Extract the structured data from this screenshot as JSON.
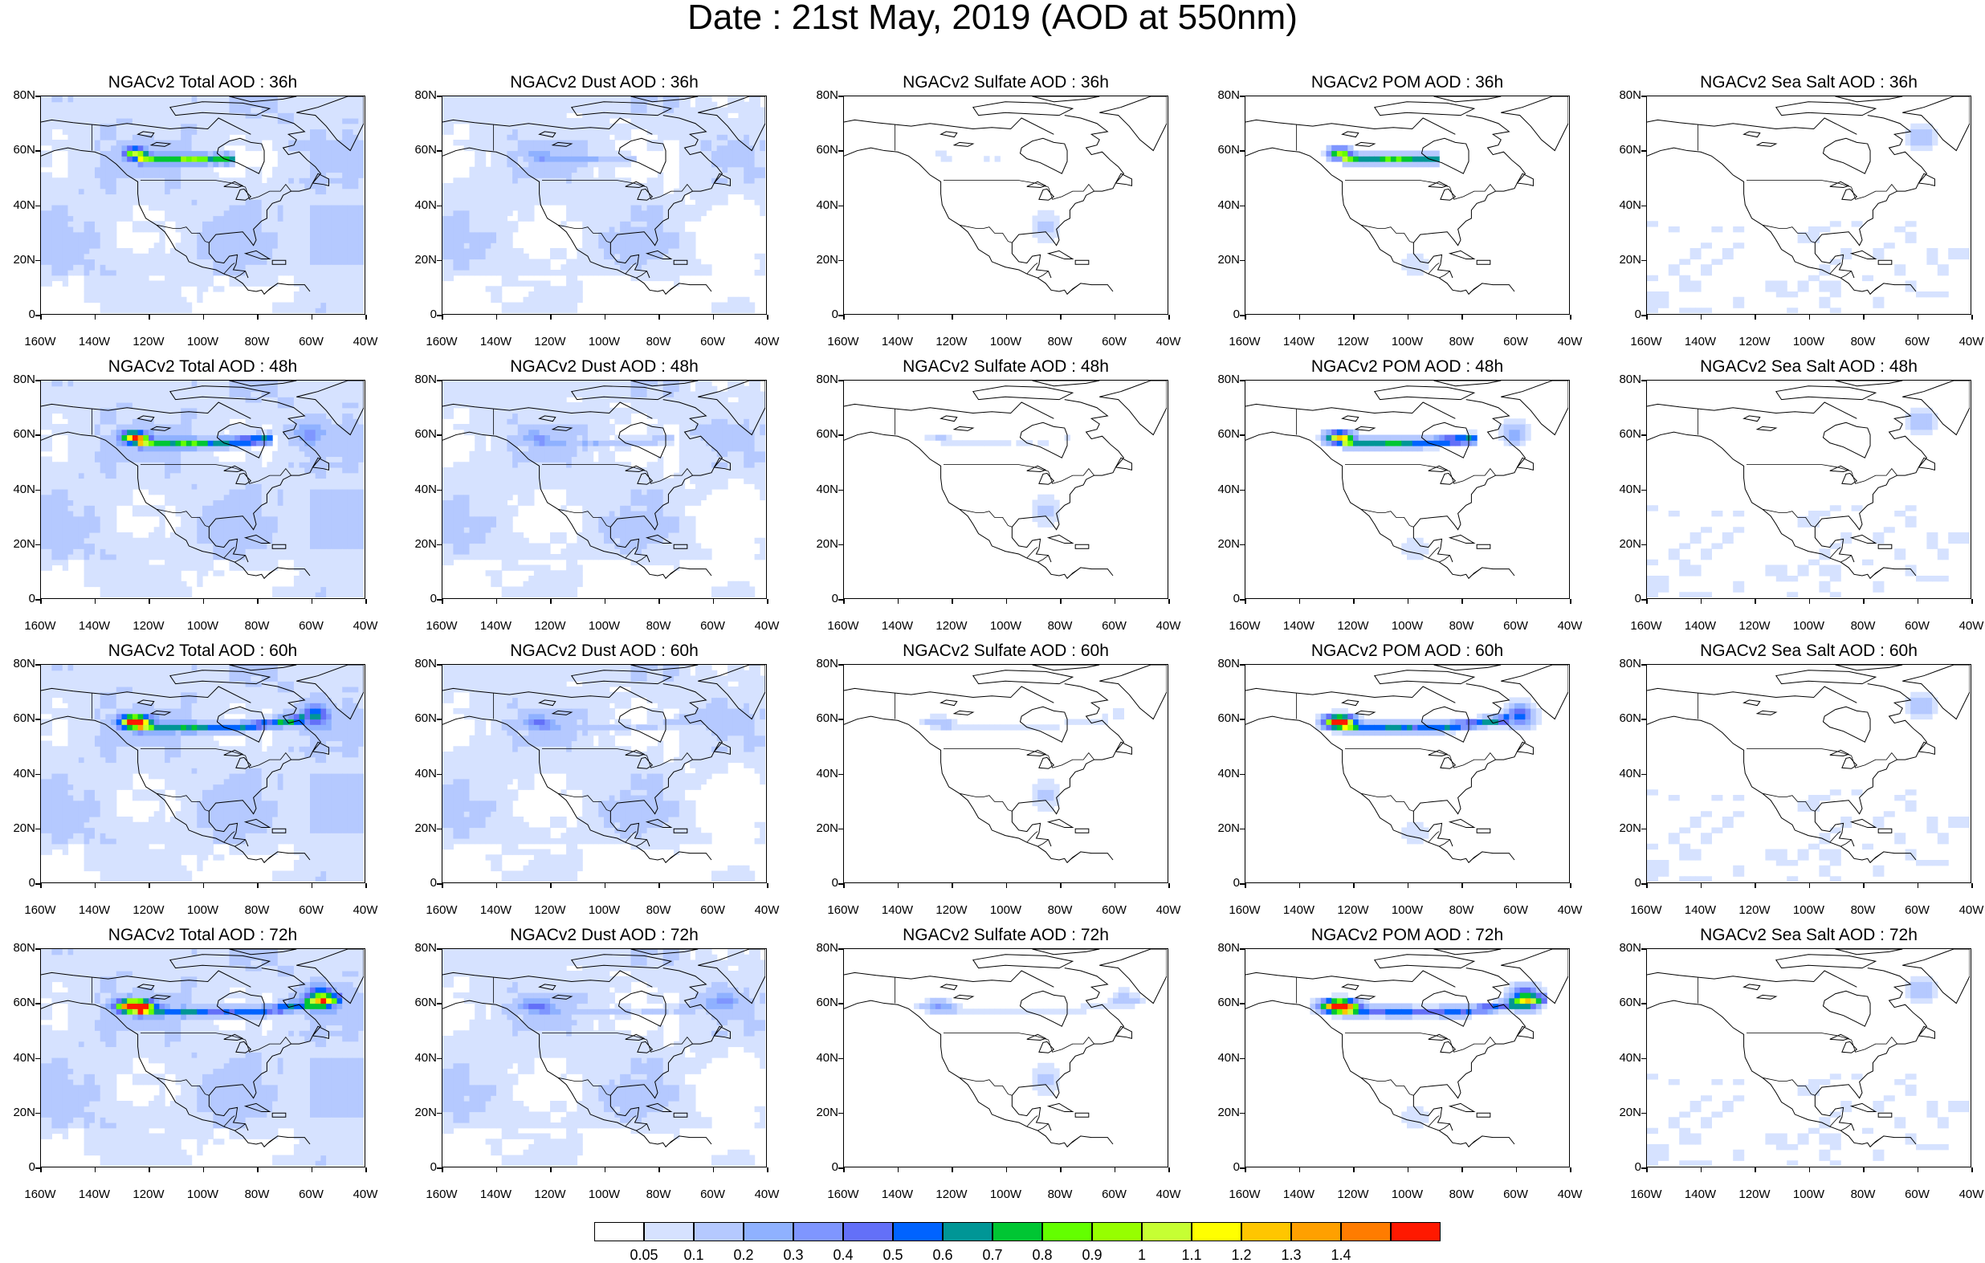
{
  "page_title": "Date : 21st May, 2019 (AOD at 550nm)",
  "axes": {
    "x_ticks": [
      "160W",
      "140W",
      "120W",
      "100W",
      "80W",
      "60W",
      "40W"
    ],
    "y_ticks": [
      "80N",
      "60N",
      "40N",
      "20N",
      "0"
    ],
    "lon_range": [
      -160,
      -40
    ],
    "lat_range": [
      0,
      80
    ]
  },
  "columns": [
    {
      "key": "total",
      "intensity": 1.0,
      "background": 0.18
    },
    {
      "key": "dust",
      "intensity": 0.18,
      "background": 0.16
    },
    {
      "key": "sulfate",
      "intensity": 0.12,
      "background": 0.0
    },
    {
      "key": "pom",
      "intensity": 1.0,
      "background": 0.0
    },
    {
      "key": "seasalt",
      "intensity": 0.0,
      "background": 0.0
    }
  ],
  "panels": [
    [
      {
        "title": "NGACv2 Total AOD : 36h",
        "hour": 36
      },
      {
        "title": "NGACv2 Dust AOD : 36h",
        "hour": 36
      },
      {
        "title": "NGACv2 Sulfate AOD : 36h",
        "hour": 36
      },
      {
        "title": "NGACv2 POM AOD : 36h",
        "hour": 36
      },
      {
        "title": "NGACv2 Sea Salt AOD : 36h",
        "hour": 36
      }
    ],
    [
      {
        "title": "NGACv2 Total AOD : 48h",
        "hour": 48
      },
      {
        "title": "NGACv2 Dust AOD : 48h",
        "hour": 48
      },
      {
        "title": "NGACv2 Sulfate AOD : 48h",
        "hour": 48
      },
      {
        "title": "NGACv2 POM AOD : 48h",
        "hour": 48
      },
      {
        "title": "NGACv2 Sea Salt AOD : 48h",
        "hour": 48
      }
    ],
    [
      {
        "title": "NGACv2 Total AOD : 60h",
        "hour": 60
      },
      {
        "title": "NGACv2 Dust AOD : 60h",
        "hour": 60
      },
      {
        "title": "NGACv2 Sulfate AOD : 60h",
        "hour": 60
      },
      {
        "title": "NGACv2 POM AOD : 60h",
        "hour": 60
      },
      {
        "title": "NGACv2 Sea Salt AOD : 60h",
        "hour": 60
      }
    ],
    [
      {
        "title": "NGACv2 Total AOD : 72h",
        "hour": 72
      },
      {
        "title": "NGACv2 Dust AOD : 72h",
        "hour": 72
      },
      {
        "title": "NGACv2 Sulfate AOD : 72h",
        "hour": 72
      },
      {
        "title": "NGACv2 POM AOD : 72h",
        "hour": 72
      },
      {
        "title": "NGACv2 Sea Salt  AOD : 72h",
        "hour": 72
      }
    ]
  ],
  "colorbar": {
    "labels": [
      "0.05",
      "0.1",
      "0.2",
      "0.3",
      "0.4",
      "0.5",
      "0.6",
      "0.7",
      "0.8",
      "0.9",
      "1",
      "1.1",
      "1.2",
      "1.3",
      "1.4"
    ],
    "colors": [
      "#ffffff",
      "#d6e2ff",
      "#b5c9ff",
      "#8fb1ff",
      "#7f96ff",
      "#6370f8",
      "#0063ff",
      "#009696",
      "#00c633",
      "#63ff00",
      "#96ff00",
      "#c6ff33",
      "#ffff00",
      "#ffc600",
      "#ffa000",
      "#ff7c00",
      "#ff1900"
    ]
  }
}
